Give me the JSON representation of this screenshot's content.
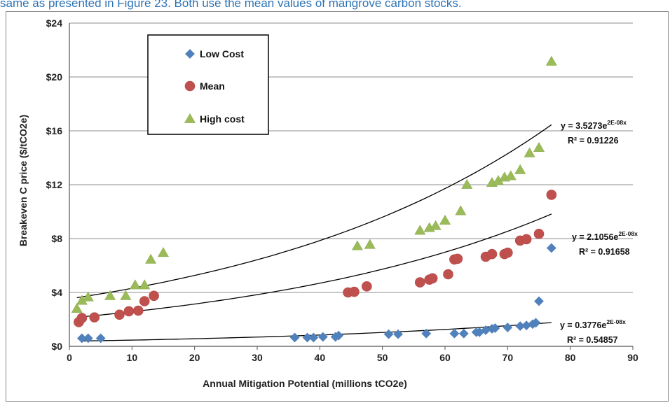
{
  "caption": "same as presented in Figure 23. Both use the mean values of mangrove carbon stocks.",
  "chart_data": {
    "type": "scatter",
    "xlabel": "Annual Mitigation Potential (millions tCO2e)",
    "ylabel": "Breakeven C price ($/tCO2e)",
    "xlim": [
      0,
      90
    ],
    "ylim": [
      0,
      24
    ],
    "x_ticks": [
      "0",
      "10",
      "20",
      "30",
      "40",
      "50",
      "60",
      "70",
      "80",
      "90"
    ],
    "y_ticks": [
      "$0",
      "$4",
      "$8",
      "$12",
      "$16",
      "$20",
      "$24"
    ],
    "grid": "horizontal",
    "legend_position": "top-left",
    "series": [
      {
        "name": "Low Cost",
        "marker": "diamond",
        "color": "#4f81bd",
        "x": [
          2,
          3,
          5,
          36,
          38,
          39,
          40.5,
          42.5,
          43,
          51,
          52.5,
          57,
          61.5,
          63,
          65,
          65.5,
          66.5,
          67.5,
          68,
          70,
          72,
          73,
          74,
          74.5,
          75,
          77
        ],
        "y": [
          0.6,
          0.6,
          0.6,
          0.65,
          0.65,
          0.65,
          0.7,
          0.7,
          0.8,
          0.9,
          0.9,
          0.95,
          0.95,
          0.95,
          1.05,
          1.05,
          1.2,
          1.3,
          1.35,
          1.4,
          1.5,
          1.55,
          1.65,
          1.75,
          3.35,
          7.3
        ],
        "trendline": {
          "type": "exponential",
          "a": 0.3776,
          "b": 2e-08,
          "equation": "y = 0.3776e",
          "exponent": "2E-08x",
          "r2": "R² = 0.54857"
        }
      },
      {
        "name": "Mean",
        "marker": "circle",
        "color": "#c0504d",
        "x": [
          1.5,
          2,
          4,
          8,
          9.5,
          11,
          12,
          13.5,
          44.5,
          45.5,
          47.5,
          56,
          57.5,
          58,
          60.5,
          61.5,
          62,
          66.5,
          67.5,
          69.5,
          70,
          72,
          73,
          75,
          77
        ],
        "y": [
          1.8,
          2.1,
          2.15,
          2.35,
          2.6,
          2.65,
          3.35,
          3.75,
          4.0,
          4.05,
          4.45,
          4.75,
          4.95,
          5.05,
          5.35,
          6.45,
          6.5,
          6.65,
          6.85,
          6.85,
          6.95,
          7.85,
          7.95,
          8.35,
          11.25
        ],
        "trendline": {
          "type": "exponential",
          "a": 2.1056,
          "b": 2e-08,
          "equation": "y = 2.1056e",
          "exponent": "2E-08x",
          "r2": "R² = 0.91658"
        }
      },
      {
        "name": "High cost",
        "marker": "triangle",
        "color": "#9bbb59",
        "x": [
          1.2,
          2,
          3,
          6.5,
          9,
          10.5,
          12,
          13,
          15,
          46,
          48,
          56,
          57.5,
          58.5,
          60,
          62.5,
          63.5,
          67.5,
          68.5,
          69.5,
          70.5,
          72,
          73.5,
          75,
          77
        ],
        "y": [
          2.8,
          3.4,
          3.65,
          3.75,
          3.75,
          4.55,
          4.55,
          6.45,
          6.95,
          7.45,
          7.55,
          8.6,
          8.8,
          8.95,
          9.35,
          10.05,
          12.0,
          12.15,
          12.3,
          12.55,
          12.65,
          13.1,
          14.35,
          14.75,
          21.15
        ],
        "trendline": {
          "type": "exponential",
          "a": 3.5273,
          "b": 2e-08,
          "equation": "y = 3.5273e",
          "exponent": "2E-08x",
          "r2": "R² = 0.91226"
        }
      }
    ]
  }
}
